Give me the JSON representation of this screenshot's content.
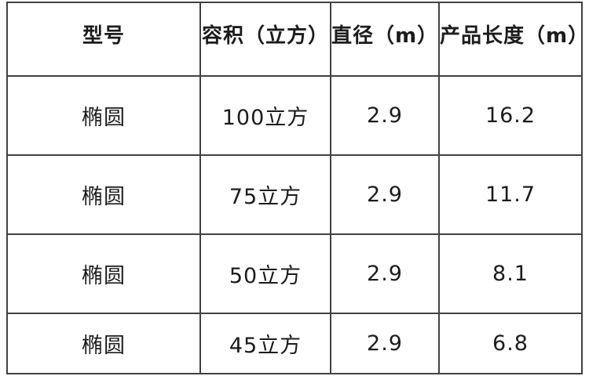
{
  "table": {
    "title": "product-spec-table",
    "headers": {
      "model": "型号",
      "volume": "容积（立方）",
      "diameter": "直径（m）",
      "length": "产品长度（m）"
    },
    "rows": [
      {
        "model": "椭圆",
        "volume": "100立方",
        "diameter": "2.9",
        "length": "16.2"
      },
      {
        "model": "椭圆",
        "volume": "75立方",
        "diameter": "2.9",
        "length": "11.7"
      },
      {
        "model": "椭圆",
        "volume": "50立方",
        "diameter": "2.9",
        "length": "8.1"
      },
      {
        "model": "椭圆",
        "volume": "45立方",
        "diameter": "2.9",
        "length": "6.8"
      }
    ],
    "colors": {
      "border": "#414141",
      "text": "#1c1c1c",
      "background": "#ffffff"
    }
  }
}
